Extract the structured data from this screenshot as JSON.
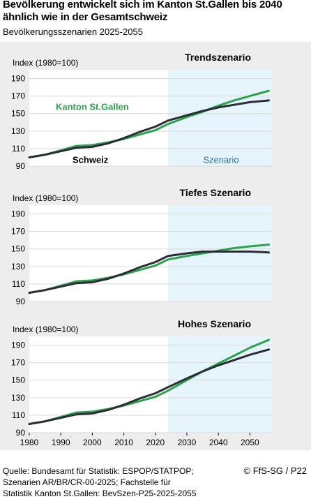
{
  "title_line1": "Bevölkerung entwickelt sich im Kanton St.Gallen bis 2040",
  "title_line2": "ähnlich wie in der Gesamtschweiz",
  "subtitle": "Bevölkerungsszenarien 2025-2055",
  "source_lines": [
    "Quelle: Bundesamt für Statistik: ESPOP/STATPOP;",
    "Szenarien AR/BR/CR-00-2025; Fachstelle für",
    "Statistik Kanton St.Gallen: BevSzen-P25-2025-2055"
  ],
  "credit": "© FfS-SG / P22",
  "colors": {
    "sg": "#2ba24c",
    "ch": "#2c2c35",
    "scenario_band": "#e6f4fb",
    "panel_bg": "#ffffff",
    "outer_bg": "#ededed",
    "grid": "#d9d9d9"
  },
  "chart_data": [
    {
      "type": "line",
      "title": "Trendszenario",
      "ylabel": "Index (1980=100)",
      "ylim": [
        90,
        200
      ],
      "yticks": [
        90,
        110,
        130,
        150,
        170,
        190
      ],
      "xlim": [
        1980,
        2057
      ],
      "scenario_start": 2024,
      "grid": true,
      "annotations": {
        "sg_label": "Kanton St.Gallen",
        "ch_label": "Schweiz",
        "scenario_label": "Szenario"
      },
      "series": [
        {
          "name": "Kanton St.Gallen",
          "color_key": "sg",
          "x": [
            1980,
            1985,
            1990,
            1995,
            2000,
            2005,
            2010,
            2015,
            2020,
            2024,
            2030,
            2035,
            2040,
            2045,
            2050,
            2056
          ],
          "y": [
            100,
            103,
            108,
            113,
            114,
            117,
            121,
            126,
            131,
            138,
            146,
            152,
            159,
            165,
            170,
            176
          ]
        },
        {
          "name": "Schweiz",
          "color_key": "ch",
          "x": [
            1980,
            1985,
            1990,
            1995,
            2000,
            2005,
            2010,
            2015,
            2020,
            2024,
            2030,
            2035,
            2040,
            2045,
            2050,
            2056
          ],
          "y": [
            100,
            103,
            107,
            111,
            112,
            116,
            122,
            129,
            135,
            142,
            148,
            153,
            157,
            160,
            163,
            165
          ]
        }
      ]
    },
    {
      "type": "line",
      "title": "Tiefes Szenario",
      "ylabel": "Index (1980=100)",
      "ylim": [
        90,
        200
      ],
      "yticks": [
        90,
        110,
        130,
        150,
        170,
        190
      ],
      "xlim": [
        1980,
        2057
      ],
      "scenario_start": 2024,
      "grid": true,
      "series": [
        {
          "name": "Kanton St.Gallen",
          "color_key": "sg",
          "x": [
            1980,
            1985,
            1990,
            1995,
            2000,
            2005,
            2010,
            2015,
            2020,
            2024,
            2030,
            2035,
            2040,
            2045,
            2050,
            2056
          ],
          "y": [
            100,
            103,
            108,
            113,
            114,
            117,
            121,
            126,
            131,
            138,
            142,
            145,
            148,
            151,
            153,
            155
          ]
        },
        {
          "name": "Schweiz",
          "color_key": "ch",
          "x": [
            1980,
            1985,
            1990,
            1995,
            2000,
            2005,
            2010,
            2015,
            2020,
            2024,
            2030,
            2035,
            2040,
            2045,
            2050,
            2056
          ],
          "y": [
            100,
            103,
            107,
            111,
            112,
            116,
            122,
            129,
            135,
            142,
            145,
            147,
            147,
            147,
            147,
            146
          ]
        }
      ]
    },
    {
      "type": "line",
      "title": "Hohes Szenario",
      "ylabel": "Index (1980=100)",
      "ylim": [
        90,
        200
      ],
      "yticks": [
        90,
        110,
        130,
        150,
        170,
        190
      ],
      "xlim": [
        1980,
        2057
      ],
      "xticks": [
        1980,
        1990,
        2000,
        2010,
        2020,
        2030,
        2040,
        2050
      ],
      "scenario_start": 2024,
      "grid": true,
      "series": [
        {
          "name": "Kanton St.Gallen",
          "color_key": "sg",
          "x": [
            1980,
            1985,
            1990,
            1995,
            2000,
            2005,
            2010,
            2015,
            2020,
            2024,
            2030,
            2035,
            2040,
            2045,
            2050,
            2056
          ],
          "y": [
            100,
            103,
            108,
            113,
            114,
            117,
            121,
            126,
            131,
            138,
            150,
            160,
            169,
            178,
            187,
            196
          ]
        },
        {
          "name": "Schweiz",
          "color_key": "ch",
          "x": [
            1980,
            1985,
            1990,
            1995,
            2000,
            2005,
            2010,
            2015,
            2020,
            2024,
            2030,
            2035,
            2040,
            2045,
            2050,
            2056
          ],
          "y": [
            100,
            103,
            107,
            111,
            112,
            116,
            122,
            129,
            135,
            142,
            152,
            160,
            167,
            173,
            179,
            185
          ]
        }
      ]
    }
  ]
}
